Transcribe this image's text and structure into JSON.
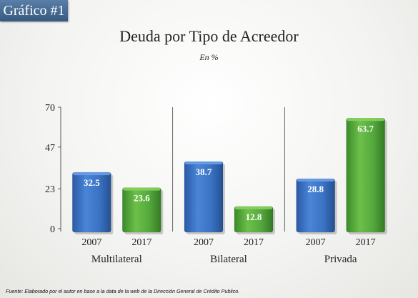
{
  "badge": "Gráfico #1",
  "footnote": "Fuente: Elaborado por el autor en base a la data de la web de la Dirección General de Crédito Publico.",
  "colors": {
    "series_2007": "#3b72c4",
    "series_2017": "#52a43a",
    "label_text": "#ffffff"
  },
  "chart_data": {
    "type": "bar",
    "title": "Deuda por Tipo de Acreedor",
    "subtitle": "En %",
    "ylim": [
      0,
      70
    ],
    "yticks": [
      "0",
      "23",
      "47",
      "70"
    ],
    "categories": [
      "Multilateral",
      "Bilateral",
      "Privada"
    ],
    "x_sublabels": [
      "2007",
      "2017"
    ],
    "series": [
      {
        "values": [
          32.5,
          38.7,
          28.8
        ],
        "labels": [
          "32.5",
          "38.7",
          "28.8"
        ],
        "color": "#3b72c4"
      },
      {
        "values": [
          23.6,
          12.8,
          63.7
        ],
        "labels": [
          "23.6",
          "12.8",
          "63.7"
        ],
        "color": "#52a43a"
      }
    ],
    "grid": false
  }
}
